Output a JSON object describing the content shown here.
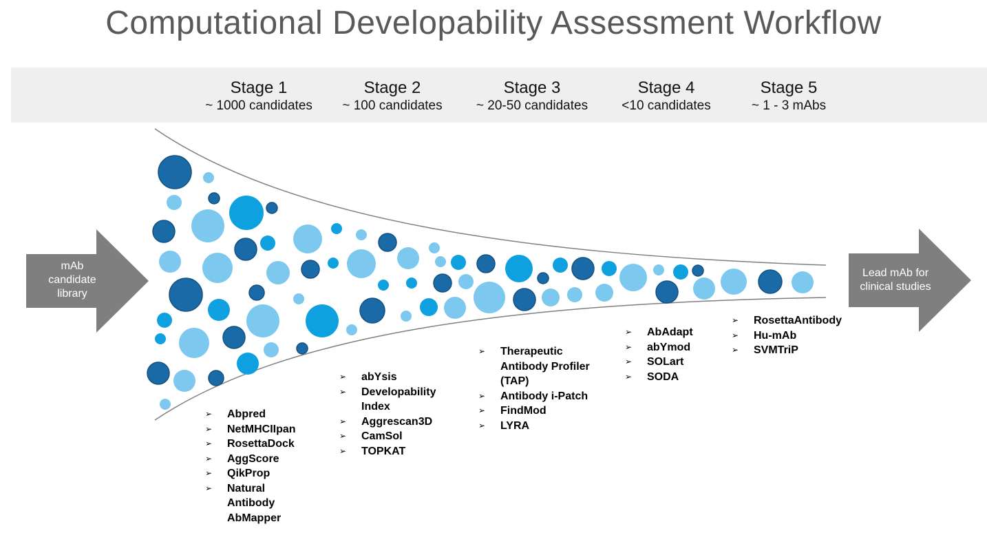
{
  "title": "Computational Developability Assessment Workflow",
  "stages": [
    {
      "name": "Stage 1",
      "count": "~ 1000 candidates"
    },
    {
      "name": "Stage 2",
      "count": "~ 100 candidates"
    },
    {
      "name": "Stage 3",
      "count": "~ 20-50 candidates"
    },
    {
      "name": "Stage 4",
      "count": "<10 candidates"
    },
    {
      "name": "Stage 5",
      "count": "~ 1 - 3 mAbs"
    }
  ],
  "input_arrow": {
    "line1": "mAb",
    "line2": "candidate",
    "line3": "library"
  },
  "output_arrow": {
    "line1": "Lead mAb  for",
    "line2": "clinical studies"
  },
  "tools": {
    "stage1": [
      "Abpred",
      "NetMHCIIpan",
      "RosettaDock",
      "AggScore",
      "QikProp",
      "Natural",
      "AbMapper"
    ],
    "stage2": [
      "abYsis",
      "Developability",
      "Aggrescan3D",
      "CamSol",
      "TOPKAT"
    ],
    "stage3": [
      "Therapeutic",
      "Antibody i-Patch",
      "FindMod",
      "LYRA"
    ],
    "stage4": [
      "AbAdapt",
      "abYmod",
      "SOLart",
      "SODA"
    ],
    "stage5": [
      "RosettaAntibody",
      "Hu-mAb",
      "SVMTriP"
    ]
  },
  "tool_continuations": {
    "developability": "Index",
    "therapeutic_1": "Antibody Profiler",
    "therapeutic_2": "(TAP)",
    "natural": "Antibody"
  },
  "colors": {
    "dark_blue": "#1a6aa8",
    "mid_blue": "#0fa0e0",
    "light_blue": "#7cc8ee",
    "arrow_gray": "#7f7f7f",
    "band_gray": "#efefef",
    "title_gray": "#595959"
  }
}
